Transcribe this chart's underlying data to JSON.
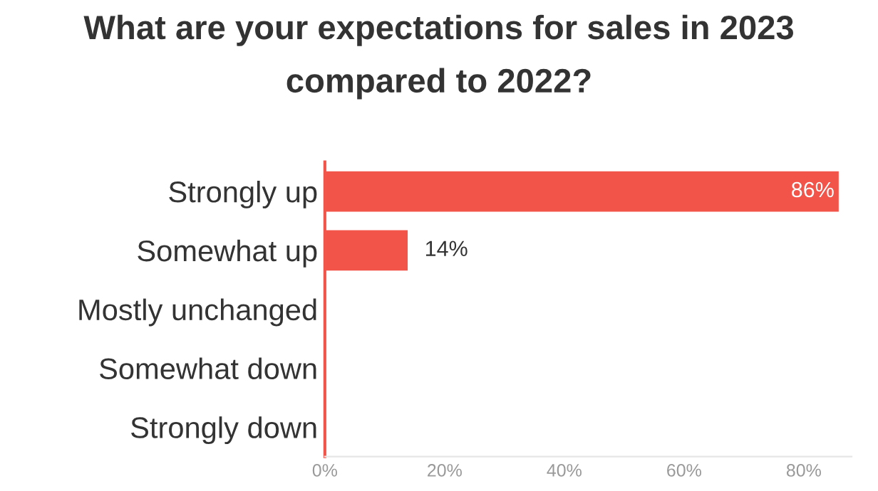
{
  "chart_data": {
    "type": "bar",
    "orientation": "horizontal",
    "title": "What are your expectations for sales in 2023\ncompared to 2022?",
    "categories": [
      "Strongly up",
      "Somewhat up",
      "Mostly unchanged",
      "Somewhat down",
      "Strongly down"
    ],
    "values": [
      86,
      14,
      0,
      0,
      0
    ],
    "value_labels": [
      "86%",
      "14%",
      null,
      null,
      null
    ],
    "color": "#f2544a",
    "xlim": [
      0,
      88
    ],
    "xticks": [
      {
        "value": 0,
        "label": "0%"
      },
      {
        "value": 20,
        "label": "20%"
      },
      {
        "value": 40,
        "label": "40%"
      },
      {
        "value": 60,
        "label": "60%"
      },
      {
        "value": 80,
        "label": "80%"
      }
    ],
    "grid": false,
    "legend": false
  }
}
